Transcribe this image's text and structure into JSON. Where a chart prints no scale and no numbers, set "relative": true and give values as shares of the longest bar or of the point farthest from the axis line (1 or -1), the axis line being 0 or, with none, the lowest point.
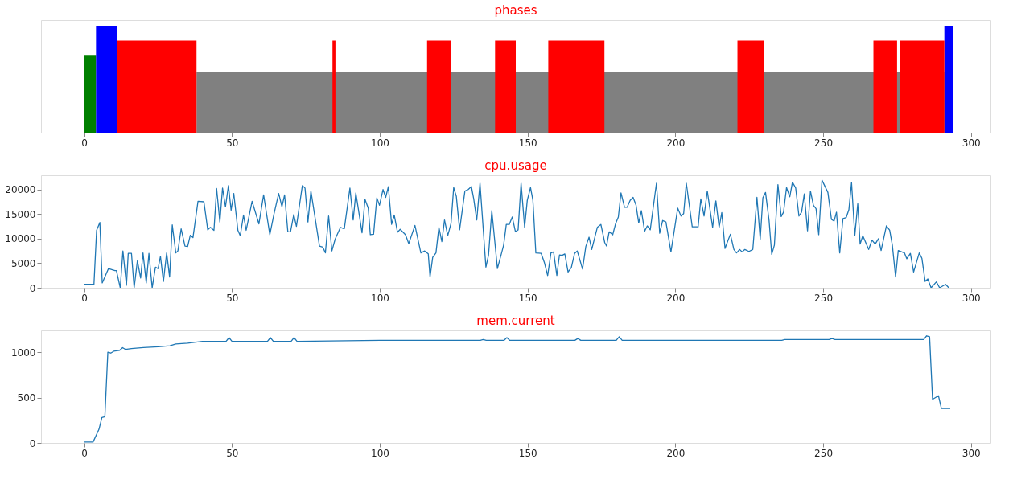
{
  "chart_data": [
    {
      "type": "area",
      "title": "phases",
      "relative": true,
      "xlim": [
        -14.6,
        306.6
      ],
      "xticks": [
        0,
        50,
        100,
        150,
        200,
        250,
        300
      ],
      "grid": false,
      "tick_labels": "x",
      "series": [
        {
          "color": "#808080",
          "x": [
            38,
            38,
            291,
            291
          ],
          "values": [
            0,
            0.57,
            0.57,
            0
          ]
        },
        {
          "color": "#008000",
          "x": [
            0,
            0,
            4,
            4
          ],
          "values": [
            0,
            0.72,
            0.72,
            0
          ]
        },
        {
          "color": "#0000ff",
          "x": [
            4,
            4,
            11,
            11,
            291,
            291,
            294,
            294
          ],
          "values": [
            0,
            1,
            1,
            0,
            0,
            1,
            1,
            0
          ]
        },
        {
          "color": "#ff0000",
          "x": [
            11,
            11,
            38,
            38,
            84,
            84,
            85,
            85,
            116,
            116,
            124,
            124,
            139,
            139,
            146,
            146,
            157,
            157,
            176,
            176,
            221,
            221,
            230,
            230,
            267,
            267,
            275,
            275,
            276,
            276,
            291,
            291
          ],
          "values": [
            0,
            0.86,
            0.86,
            0,
            0,
            0.86,
            0.86,
            0,
            0,
            0.86,
            0.86,
            0,
            0,
            0.86,
            0.86,
            0,
            0,
            0.86,
            0.86,
            0,
            0,
            0.86,
            0.86,
            0,
            0,
            0.86,
            0.86,
            0,
            0,
            0.86,
            0.86,
            0
          ]
        }
      ]
    },
    {
      "type": "line",
      "title": "cpu.usage",
      "xlim": [
        -14.6,
        306.6
      ],
      "xticks": [
        0,
        50,
        100,
        150,
        200,
        250,
        300
      ],
      "ylim": [
        0,
        22900
      ],
      "yticks": [
        0,
        5000,
        10000,
        15000,
        20000
      ],
      "grid": false,
      "x": [
        0,
        3.3,
        4.2,
        5.3,
        6.1,
        8.2,
        10.4,
        10.9,
        12.2,
        13.1,
        14.3,
        14.9,
        16.0,
        16.9,
        18.0,
        19.1,
        19.9,
        21.0,
        21.9,
        23.0,
        24.1,
        25.0,
        25.8,
        26.8,
        27.9,
        28.9,
        29.8,
        31.0,
        31.7,
        32.8,
        34.1,
        35.0,
        35.9,
        36.8,
        38.5,
        40.5,
        41.8,
        42.7,
        43.9,
        44.8,
        45.9,
        46.8,
        47.8,
        48.8,
        49.7,
        50.6,
        52.0,
        52.8,
        53.9,
        54.8,
        56.8,
        59.1,
        60.7,
        62.8,
        64.2,
        65.8,
        66.9,
        67.8,
        68.9,
        69.8,
        70.9,
        71.8,
        73.8,
        74.7,
        75.7,
        76.7,
        79.6,
        80.7,
        81.6,
        82.7,
        83.8,
        84.9,
        86.7,
        88.0,
        89.9,
        91.0,
        91.9,
        94.0,
        95.0,
        96.1,
        96.8,
        97.9,
        99.0,
        99.9,
        101.1,
        102.0,
        102.9,
        104.0,
        104.9,
        106.0,
        106.9,
        108.7,
        109.8,
        111.9,
        113.9,
        115.2,
        116.4,
        117.0,
        117.9,
        119.0,
        120.0,
        121.0,
        121.9,
        123.0,
        124.1,
        125.0,
        125.9,
        127.0,
        128.8,
        129.9,
        131.0,
        131.8,
        132.8,
        133.9,
        135.9,
        136.8,
        137.9,
        139.8,
        141.3,
        141.9,
        142.8,
        143.8,
        144.8,
        145.9,
        146.8,
        147.8,
        149.0,
        149.9,
        151.0,
        151.8,
        152.8,
        154.6,
        155.7,
        156.8,
        157.9,
        158.8,
        159.9,
        160.8,
        161.7,
        162.6,
        163.7,
        164.8,
        165.9,
        166.8,
        168.6,
        169.7,
        170.8,
        171.7,
        173.6,
        174.8,
        176.1,
        176.7,
        177.6,
        178.8,
        179.8,
        180.7,
        181.6,
        182.8,
        183.7,
        184.7,
        185.7,
        186.7,
        187.6,
        188.5,
        189.6,
        190.5,
        191.5,
        193.6,
        194.7,
        195.7,
        196.8,
        198.5,
        200.8,
        201.9,
        202.8,
        203.7,
        205.7,
        207.7,
        208.6,
        209.7,
        210.8,
        212.6,
        213.7,
        214.8,
        215.7,
        216.8,
        218.6,
        219.8,
        220.7,
        221.7,
        222.6,
        223.5,
        224.9,
        226.2,
        227.6,
        228.7,
        229.6,
        230.5,
        231.7,
        232.6,
        233.5,
        234.7,
        235.8,
        236.6,
        237.6,
        238.7,
        239.6,
        240.7,
        241.8,
        242.7,
        243.6,
        244.7,
        245.7,
        246.7,
        247.6,
        248.5,
        249.6,
        251.6,
        252.8,
        253.7,
        254.5,
        255.6,
        256.7,
        257.8,
        258.7,
        259.6,
        260.7,
        261.7,
        262.5,
        263.4,
        265.4,
        266.5,
        267.6,
        268.7,
        269.6,
        271.4,
        272.5,
        273.4,
        274.5,
        275.4,
        277.5,
        278.3,
        279.5,
        280.6,
        282.5,
        283.4,
        284.5,
        285.4,
        286.5,
        288.3,
        289.4,
        291.4,
        292.5
      ],
      "series": [
        {
          "color": "#1f77b4",
          "values": [
            700,
            700,
            11700,
            13300,
            1000,
            3900,
            3500,
            3500,
            0,
            7500,
            500,
            7000,
            7000,
            0,
            5500,
            2000,
            7100,
            1000,
            7000,
            0,
            4200,
            3900,
            6400,
            1300,
            7100,
            2200,
            12800,
            7100,
            7500,
            12000,
            8500,
            8400,
            10700,
            10200,
            17600,
            17500,
            11800,
            12300,
            11700,
            20200,
            13400,
            20300,
            16500,
            20800,
            15800,
            19200,
            11700,
            10600,
            14800,
            11700,
            17600,
            13000,
            18900,
            10800,
            15000,
            19200,
            16500,
            18900,
            11400,
            11400,
            14900,
            12500,
            20800,
            20300,
            13400,
            19700,
            8500,
            8300,
            7100,
            14600,
            7500,
            9900,
            12300,
            12000,
            20300,
            13800,
            19300,
            11200,
            18000,
            16200,
            10800,
            10900,
            18300,
            16800,
            20000,
            18400,
            20600,
            12900,
            14800,
            11300,
            11900,
            10800,
            9000,
            12700,
            7100,
            7500,
            6900,
            2200,
            6200,
            7100,
            12300,
            9400,
            13800,
            10600,
            13100,
            20400,
            18600,
            11800,
            19700,
            20000,
            20600,
            18000,
            13800,
            21300,
            4200,
            6700,
            15700,
            3900,
            7300,
            8700,
            12900,
            12900,
            14400,
            11400,
            11800,
            21300,
            12300,
            17800,
            20400,
            17800,
            7100,
            7000,
            5100,
            2500,
            7100,
            7300,
            2500,
            6700,
            6600,
            6900,
            3200,
            4100,
            7000,
            7500,
            3800,
            8400,
            10300,
            7800,
            12300,
            12900,
            9200,
            8500,
            11400,
            10800,
            13100,
            14400,
            19300,
            16400,
            16400,
            17800,
            18400,
            16800,
            13200,
            15700,
            11500,
            12600,
            11800,
            21300,
            11100,
            13700,
            13400,
            7300,
            16200,
            14600,
            15100,
            21300,
            12400,
            12400,
            18100,
            14600,
            19700,
            12300,
            17700,
            12300,
            15300,
            8000,
            10900,
            7800,
            7100,
            7800,
            7300,
            7800,
            7400,
            7800,
            18400,
            9900,
            18300,
            19400,
            13700,
            6800,
            8700,
            21000,
            14500,
            15400,
            20400,
            18500,
            21500,
            20300,
            14600,
            15400,
            19100,
            11600,
            19700,
            16800,
            16100,
            10800,
            21900,
            19400,
            13900,
            13600,
            15400,
            7100,
            14100,
            14300,
            15900,
            21400,
            10600,
            17100,
            8900,
            10600,
            7800,
            9700,
            8900,
            10000,
            7600,
            12600,
            11700,
            8700,
            2200,
            7600,
            7100,
            5900,
            7000,
            3200,
            7100,
            6000,
            1300,
            1800,
            0,
            1200,
            0,
            700,
            0
          ]
        }
      ]
    },
    {
      "type": "line",
      "title": "mem.current",
      "xlim": [
        -14.6,
        306.6
      ],
      "xticks": [
        0,
        50,
        100,
        150,
        200,
        250,
        300
      ],
      "ylim": [
        0,
        1240
      ],
      "yticks": [
        0,
        500,
        1000
      ],
      "grid": false,
      "x": [
        0,
        3,
        5,
        6,
        7,
        8,
        9,
        10,
        12,
        13,
        14,
        16,
        20,
        25,
        29,
        31,
        35,
        40,
        48,
        49,
        50,
        62,
        63,
        64,
        70,
        71,
        72,
        100,
        134,
        135,
        136,
        142,
        143,
        144,
        166,
        167,
        168,
        180,
        181,
        182,
        236,
        237,
        252,
        253,
        254,
        284,
        285,
        286,
        287,
        288,
        289,
        290,
        293
      ],
      "series": [
        {
          "color": "#1f77b4",
          "values": [
            10,
            10,
            150,
            280,
            290,
            1000,
            990,
            1010,
            1020,
            1050,
            1030,
            1040,
            1050,
            1060,
            1070,
            1090,
            1100,
            1120,
            1120,
            1160,
            1120,
            1120,
            1160,
            1120,
            1120,
            1160,
            1120,
            1130,
            1130,
            1140,
            1130,
            1130,
            1160,
            1130,
            1130,
            1150,
            1130,
            1130,
            1170,
            1130,
            1130,
            1140,
            1140,
            1150,
            1140,
            1140,
            1180,
            1170,
            480,
            500,
            520,
            380,
            380
          ]
        }
      ]
    }
  ]
}
